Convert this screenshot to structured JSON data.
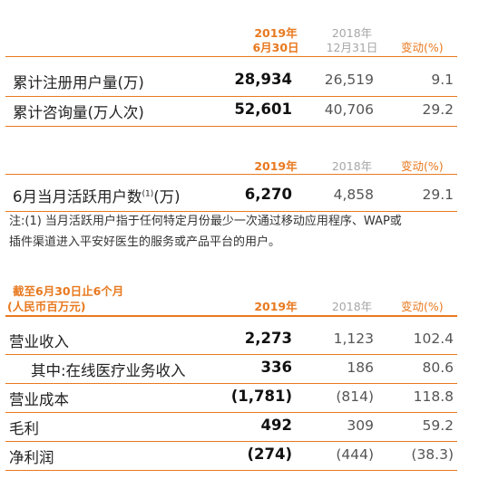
{
  "colors": {
    "accent": "#e8791f",
    "muted": "#a7a7a7"
  },
  "table1": {
    "header": {
      "cur_line1": "2019年",
      "cur_line2": "6月30日",
      "prev_line1": "2018年",
      "prev_line2": "12月31日",
      "change": "变动(%)"
    },
    "rows": [
      {
        "label": "累计注册用户量(万)",
        "cur": "28,934",
        "prev": "26,519",
        "change": "9.1"
      },
      {
        "label": "累计咨询量(万人次)",
        "cur": "52,601",
        "prev": "40,706",
        "change": "29.2"
      }
    ]
  },
  "table2": {
    "header": {
      "cur": "2019年",
      "prev": "2018年",
      "change": "变动(%)"
    },
    "row": {
      "label": "6月当月活跃用户数",
      "label_sup": "(1)",
      "label_unit": "(万)",
      "cur": "6,270",
      "prev": "4,858",
      "change": "29.1"
    },
    "note_line1": "注:(1) 当月活跃用户指于任何特定月份最少一次通过移动应用程序、WAP或",
    "note_line2": "插件渠道进入平安好医生的服务或产品平台的用户。"
  },
  "table3": {
    "section_line1": "截至6月30日止6个月",
    "section_line2": "(人民币百万元)",
    "header": {
      "cur": "2019年",
      "prev": "2018年",
      "change": "变动(%)"
    },
    "rows": [
      {
        "label": "营业收入",
        "cur": "2,273",
        "prev": "1,123",
        "change": "102.4"
      },
      {
        "label": "其中:在线医疗业务收入",
        "cur": "336",
        "prev": "186",
        "change": "80.6"
      },
      {
        "label": "营业成本",
        "cur": "(1,781)",
        "prev": "(814)",
        "change": "118.8"
      },
      {
        "label": "毛利",
        "cur": "492",
        "prev": "309",
        "change": "59.2"
      },
      {
        "label": "净利润",
        "cur": "(274)",
        "prev": "(444)",
        "change": "(38.3)"
      }
    ]
  }
}
